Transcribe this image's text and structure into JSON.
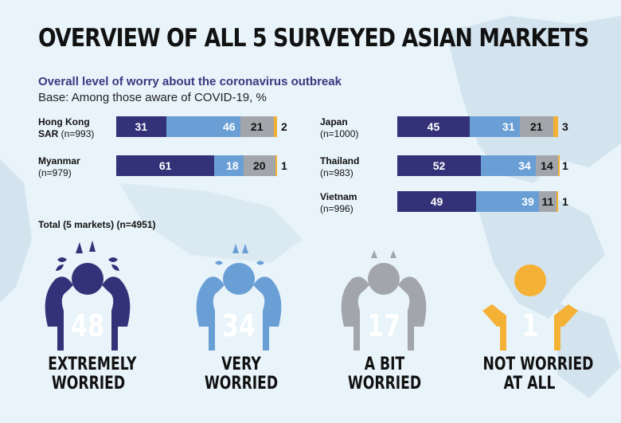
{
  "header": {
    "title": "OVERVIEW OF ALL 5 SURVEYED ASIAN MARKETS",
    "subtitle": "Overall level of worry about the coronavirus outbreak",
    "base": "Base: Among those aware of COVID-19, %"
  },
  "colors": {
    "extremely": "#333278",
    "very": "#6a9fd6",
    "a_bit": "#a2a6ab",
    "not": "#f5b135"
  },
  "chart_data": [
    {
      "type": "bar",
      "orientation": "horizontal-stacked",
      "categories": [
        "Hong Kong SAR (n=993)",
        "Myanmar (n=979)",
        "Japan (n=1000)",
        "Thailand (n=983)",
        "Vietnam (n=996)"
      ],
      "series": [
        {
          "name": "EXTREMELY WORRIED",
          "values": [
            31,
            61,
            45,
            52,
            49
          ]
        },
        {
          "name": "VERY WORRIED",
          "values": [
            46,
            18,
            31,
            34,
            39
          ]
        },
        {
          "name": "A BIT WORRIED",
          "values": [
            21,
            20,
            21,
            14,
            11
          ]
        },
        {
          "name": "NOT WORRIED AT ALL",
          "values": [
            2,
            1,
            3,
            1,
            1
          ]
        }
      ],
      "markets": [
        {
          "name": "Hong Kong",
          "name2": "SAR",
          "n": "(n=993)"
        },
        {
          "name": "Myanmar",
          "name2": "",
          "n": "(n=979)"
        },
        {
          "name": "Japan",
          "name2": "",
          "n": "(n=1000)"
        },
        {
          "name": "Thailand",
          "name2": "",
          "n": "(n=983)"
        },
        {
          "name": "Vietnam",
          "name2": "",
          "n": "(n=996)"
        }
      ],
      "title": "Overall level of worry about the coronavirus outbreak",
      "xlim": [
        0,
        100
      ]
    },
    {
      "type": "table",
      "title": "Total (5 markets) (n=4951)",
      "categories": [
        "EXTREMELY WORRIED",
        "VERY WORRIED",
        "A BIT WORRIED",
        "NOT WORRIED AT ALL"
      ],
      "values": [
        48,
        34,
        17,
        1
      ]
    }
  ],
  "total": {
    "label": "Total (5 markets) (n=4951)",
    "items": [
      {
        "value": "48",
        "line1": "EXTREMELY",
        "line2": "WORRIED"
      },
      {
        "value": "34",
        "line1": "VERY",
        "line2": "WORRIED"
      },
      {
        "value": "17",
        "line1": "A BIT",
        "line2": "WORRIED"
      },
      {
        "value": "1",
        "line1": "NOT WORRIED",
        "line2": "AT ALL"
      }
    ]
  }
}
